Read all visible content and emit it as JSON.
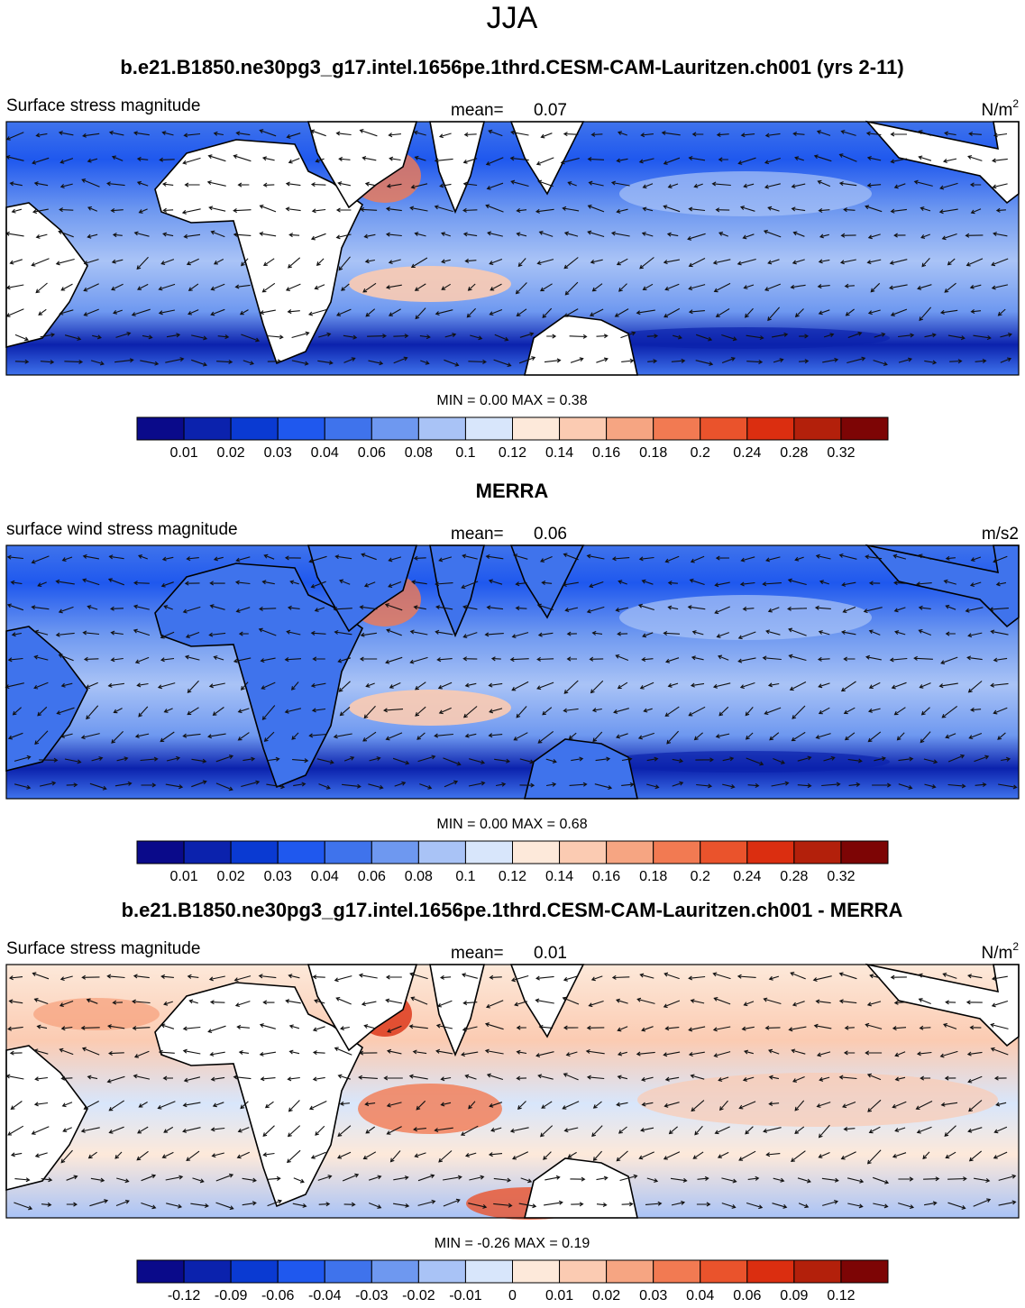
{
  "title": "JJA",
  "panels": [
    {
      "title": "b.e21.B1850.ne30pg3_g17.intel.1656pe.1thrd.CESM-CAM-Lauritzen.ch001 (yrs 2-11)",
      "left_label": "Surface stress magnitude",
      "mean_label": "mean=",
      "mean": "0.07",
      "units": "N/m",
      "units_sup": "2",
      "minmax": "MIN =   0.00 MAX =   0.38",
      "colorbar": {
        "colors": [
          "#0a0a8a",
          "#0b22ad",
          "#0a3ad2",
          "#1f58ee",
          "#3f73ec",
          "#6e98f0",
          "#a9c3f6",
          "#d8e6fb",
          "#fde9da",
          "#fbcbb2",
          "#f6a582",
          "#f27a52",
          "#ea532c",
          "#db2e10",
          "#b3200b",
          "#7d0505"
        ],
        "labels": [
          "0.01",
          "0.02",
          "0.03",
          "0.04",
          "0.06",
          "0.08",
          "0.1",
          "0.12",
          "0.14",
          "0.16",
          "0.18",
          "0.2",
          "0.24",
          "0.28",
          "0.32"
        ]
      }
    },
    {
      "title": "MERRA",
      "left_label": "surface wind stress magnitude",
      "mean_label": "mean=",
      "mean": "0.06",
      "units": "m/s2",
      "minmax": "MIN =   0.00 MAX =   0.68",
      "colorbar": {
        "colors": [
          "#0a0a8a",
          "#0b22ad",
          "#0a3ad2",
          "#1f58ee",
          "#3f73ec",
          "#6e98f0",
          "#a9c3f6",
          "#d8e6fb",
          "#fde9da",
          "#fbcbb2",
          "#f6a582",
          "#f27a52",
          "#ea532c",
          "#db2e10",
          "#b3200b",
          "#7d0505"
        ],
        "labels": [
          "0.01",
          "0.02",
          "0.03",
          "0.04",
          "0.06",
          "0.08",
          "0.1",
          "0.12",
          "0.14",
          "0.16",
          "0.18",
          "0.2",
          "0.24",
          "0.28",
          "0.32"
        ]
      }
    },
    {
      "title": "b.e21.B1850.ne30pg3_g17.intel.1656pe.1thrd.CESM-CAM-Lauritzen.ch001 - MERRA",
      "left_label": "Surface stress magnitude",
      "mean_label": "mean=",
      "mean": "0.01",
      "units": "N/m",
      "units_sup": "2",
      "minmax": "MIN =  -0.26 MAX =   0.19",
      "colorbar": {
        "colors": [
          "#0a0a8a",
          "#0b22ad",
          "#0a3ad2",
          "#1f58ee",
          "#3f73ec",
          "#6e98f0",
          "#a9c3f6",
          "#d8e6fb",
          "#fde9da",
          "#fbcbb2",
          "#f6a582",
          "#f27a52",
          "#ea532c",
          "#db2e10",
          "#b3200b",
          "#7d0505"
        ],
        "labels": [
          "-0.12",
          "-0.09",
          "-0.06",
          "-0.04",
          "-0.03",
          "-0.02",
          "-0.01",
          "0",
          "0.01",
          "0.02",
          "0.03",
          "0.04",
          "0.06",
          "0.09",
          "0.12"
        ]
      }
    }
  ]
}
